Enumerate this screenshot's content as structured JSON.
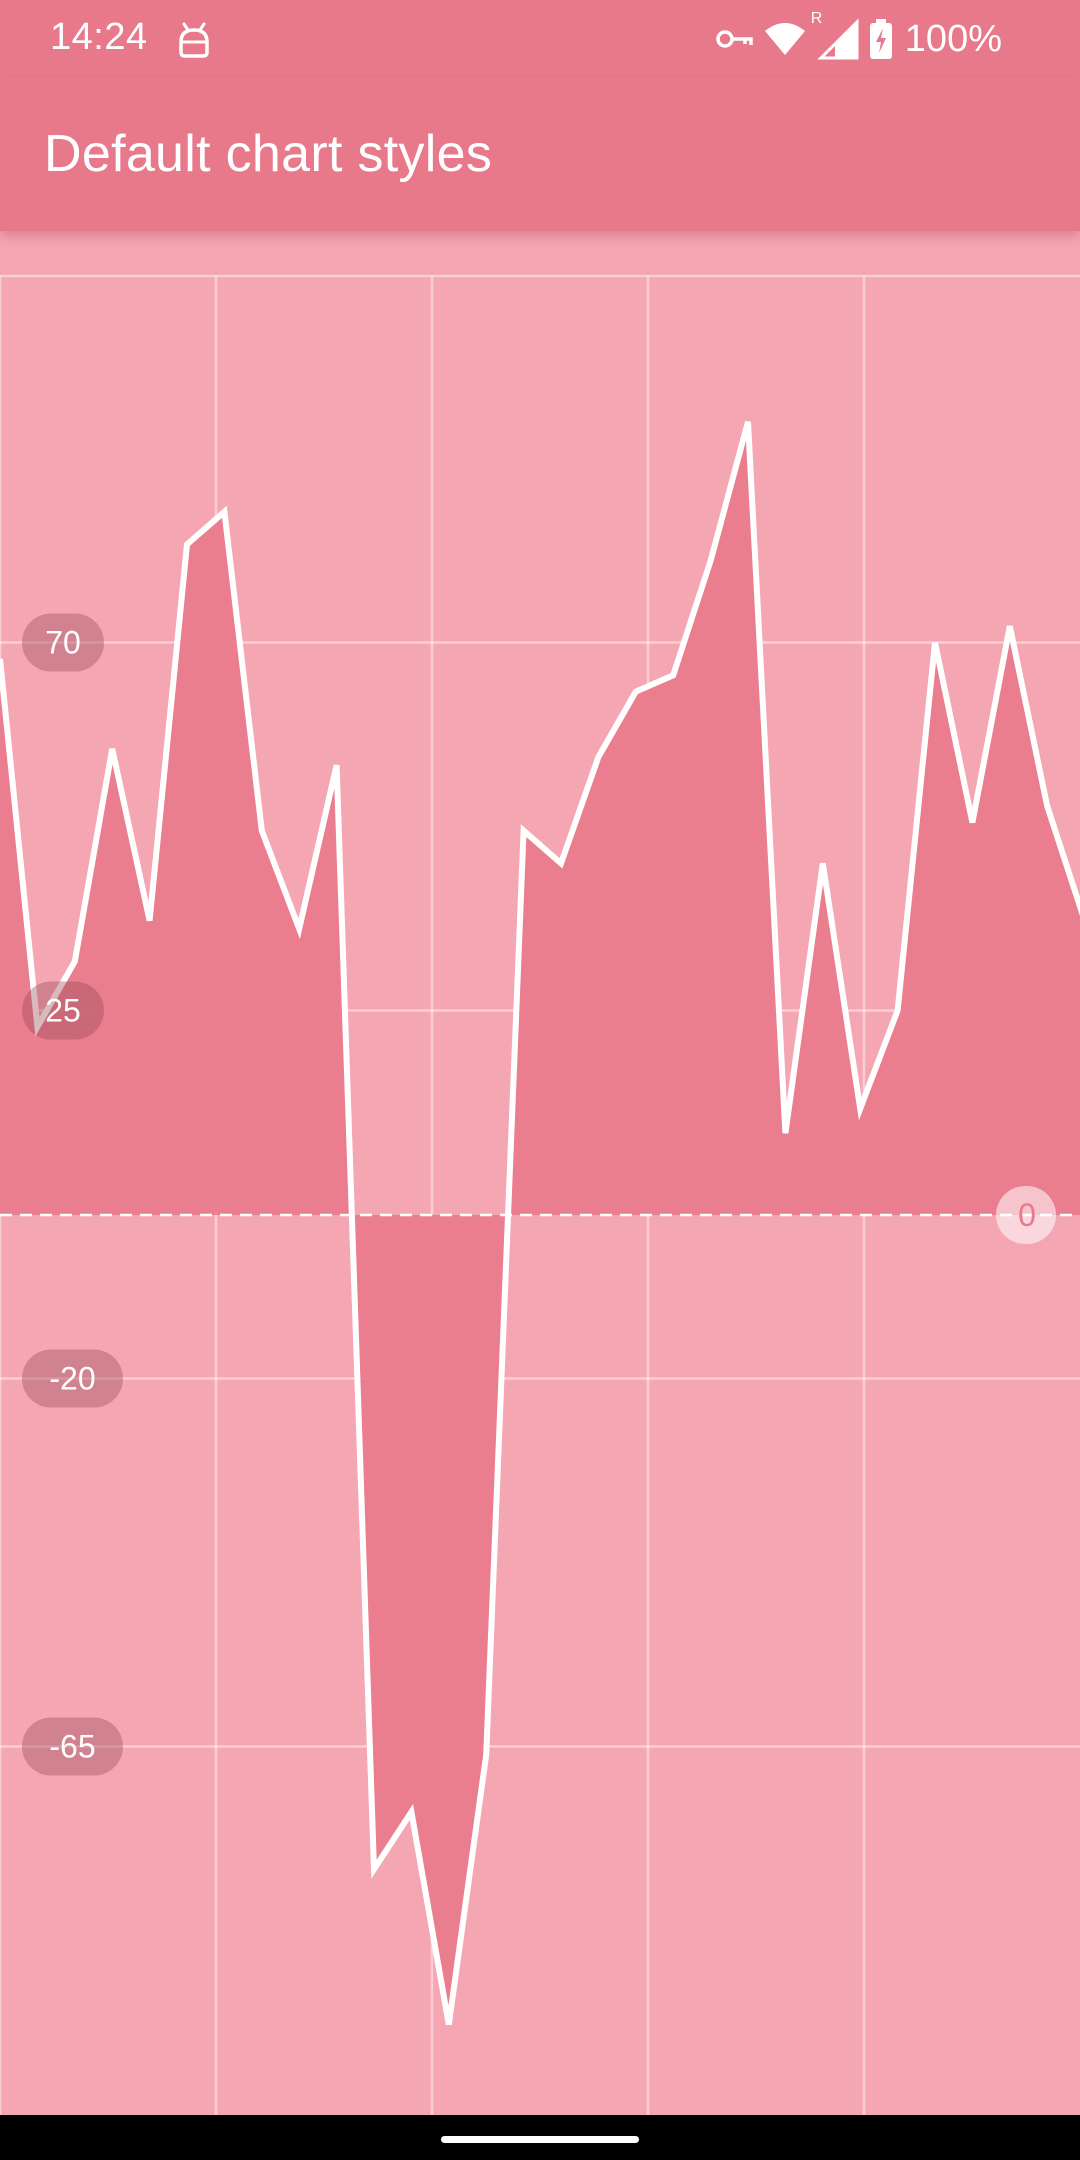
{
  "status_bar": {
    "time": "14:24",
    "notification_icon": "android-robot-icon",
    "icons": [
      "vpn-key-icon",
      "wifi-icon",
      "signal-roaming-icon",
      "battery-charging-icon"
    ],
    "roaming_indicator": "R",
    "battery_percent": "100%"
  },
  "app_bar": {
    "title": "Default chart styles"
  },
  "colors": {
    "app_bar": "#e8798b",
    "chart_background": "#f4a6b3",
    "chart_fill": "#e8798b",
    "line": "#ffffff"
  },
  "chart_data": {
    "type": "area",
    "title": "",
    "xlabel": "",
    "ylabel": "",
    "grid": true,
    "y_ticks": [
      70,
      25,
      -20,
      -65
    ],
    "baseline_label": "0",
    "ylim": [
      -98,
      115
    ],
    "x": [
      0,
      1,
      2,
      3,
      4,
      5,
      6,
      7,
      8,
      9,
      10,
      11,
      12,
      13,
      14,
      15,
      16,
      17,
      18,
      19,
      20,
      21,
      22,
      23,
      24,
      25,
      26,
      27,
      28,
      29
    ],
    "series": [
      {
        "values": [
          68,
          23,
          31,
          57,
          36,
          82,
          86,
          47,
          35,
          55,
          -80,
          -73,
          -99,
          -66,
          47,
          43,
          56,
          64,
          66,
          80,
          97,
          10,
          43,
          13,
          25,
          70,
          48,
          72,
          50,
          36
        ]
      }
    ]
  }
}
